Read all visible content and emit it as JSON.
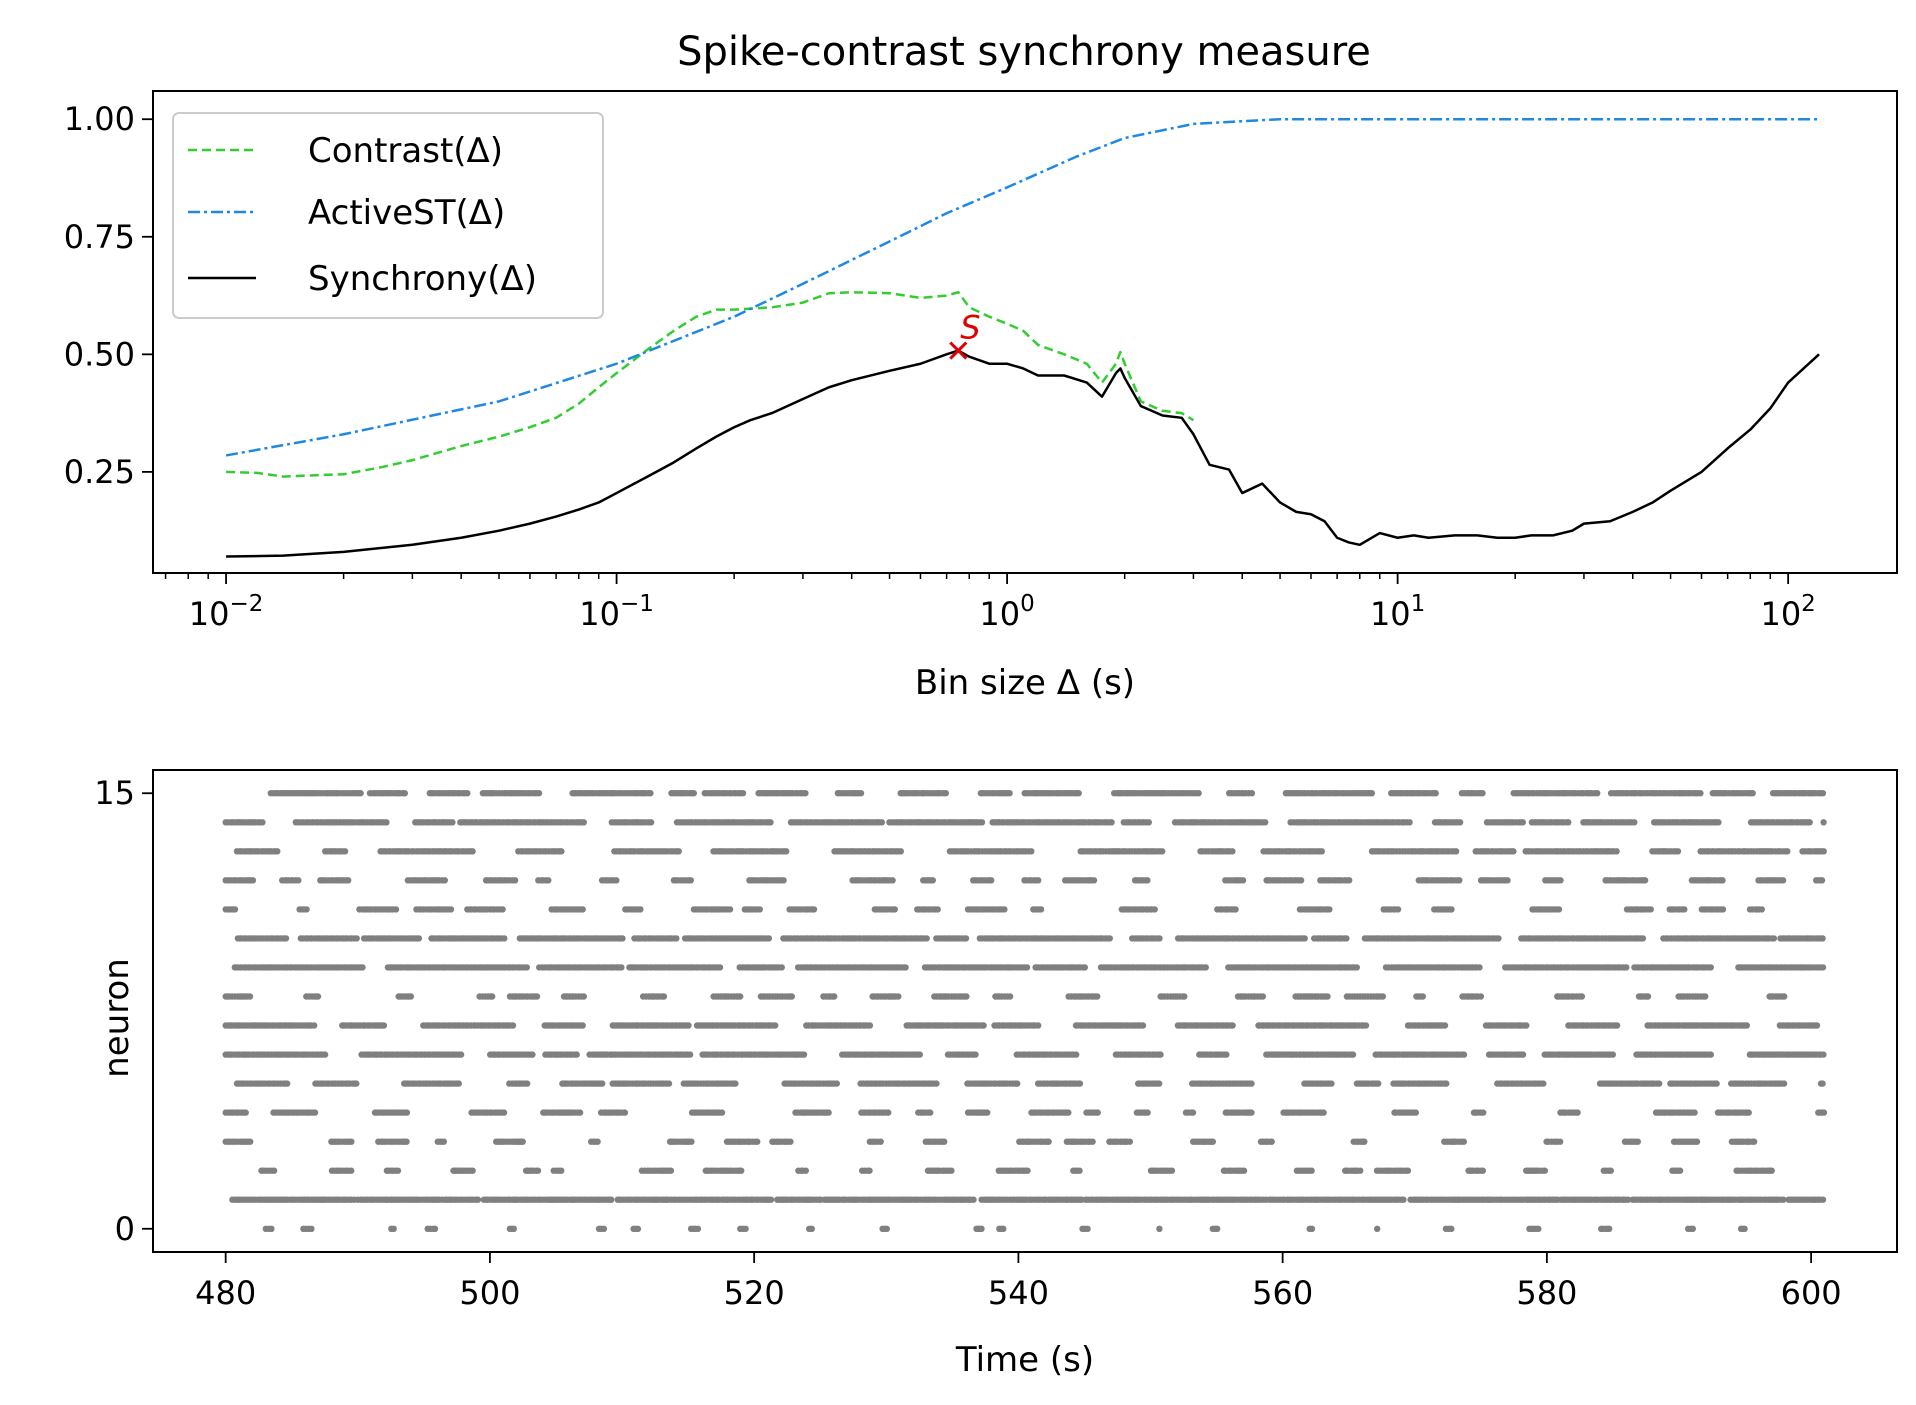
{
  "chart_data": [
    {
      "type": "line",
      "title": "Spike-contrast synchrony measure",
      "xlabel": "Bin size Δ (s)",
      "ylabel": "",
      "xscale": "log",
      "xlim": [
        0.0065,
        190
      ],
      "ylim": [
        0.035,
        1.06
      ],
      "x_ticks": [
        {
          "value": 0.01,
          "base": "10",
          "exp": "−2"
        },
        {
          "value": 0.1,
          "base": "10",
          "exp": "−1"
        },
        {
          "value": 1,
          "base": "10",
          "exp": "0"
        },
        {
          "value": 10,
          "base": "10",
          "exp": "1"
        },
        {
          "value": 100,
          "base": "10",
          "exp": "2"
        }
      ],
      "y_ticks": [
        {
          "value": 0.25,
          "label": "0.25"
        },
        {
          "value": 0.5,
          "label": "0.50"
        },
        {
          "value": 0.75,
          "label": "0.75"
        },
        {
          "value": 1.0,
          "label": "1.00"
        }
      ],
      "legend_position": "top-left",
      "series": [
        {
          "name": "Contrast(Δ)",
          "color": "#33cc33",
          "style": "dashed",
          "x": [
            0.01,
            0.012,
            0.014,
            0.017,
            0.02,
            0.025,
            0.03,
            0.04,
            0.05,
            0.06,
            0.07,
            0.08,
            0.09,
            0.1,
            0.12,
            0.14,
            0.16,
            0.18,
            0.2,
            0.25,
            0.3,
            0.35,
            0.4,
            0.5,
            0.6,
            0.7,
            0.75,
            0.8,
            0.9,
            1.0,
            1.1,
            1.2,
            1.4,
            1.6,
            1.75,
            1.9,
            1.95,
            2.0,
            2.2,
            2.5,
            2.8,
            3.0
          ],
          "y": [
            0.25,
            0.248,
            0.24,
            0.243,
            0.245,
            0.26,
            0.275,
            0.305,
            0.325,
            0.345,
            0.365,
            0.395,
            0.43,
            0.46,
            0.51,
            0.55,
            0.58,
            0.595,
            0.595,
            0.6,
            0.61,
            0.63,
            0.632,
            0.63,
            0.62,
            0.625,
            0.632,
            0.6,
            0.58,
            0.565,
            0.55,
            0.52,
            0.5,
            0.48,
            0.44,
            0.48,
            0.505,
            0.48,
            0.4,
            0.38,
            0.375,
            0.36
          ]
        },
        {
          "name": "ActiveST(Δ)",
          "color": "#1e88e5",
          "style": "dashdot",
          "x": [
            0.01,
            0.02,
            0.05,
            0.1,
            0.2,
            0.3,
            0.5,
            0.7,
            1.0,
            1.5,
            2.0,
            3.0,
            5.0,
            10,
            20,
            50,
            100,
            120
          ],
          "y": [
            0.285,
            0.33,
            0.4,
            0.48,
            0.58,
            0.65,
            0.74,
            0.8,
            0.855,
            0.92,
            0.96,
            0.99,
            1.0,
            1.0,
            1.0,
            1.0,
            1.0,
            1.0
          ]
        },
        {
          "name": "Synchrony(Δ)",
          "color": "#000000",
          "style": "solid",
          "x": [
            0.01,
            0.014,
            0.02,
            0.03,
            0.04,
            0.05,
            0.06,
            0.07,
            0.08,
            0.09,
            0.1,
            0.12,
            0.14,
            0.16,
            0.18,
            0.2,
            0.22,
            0.25,
            0.3,
            0.35,
            0.4,
            0.5,
            0.6,
            0.7,
            0.75,
            0.8,
            0.9,
            1.0,
            1.1,
            1.2,
            1.4,
            1.6,
            1.75,
            1.9,
            1.95,
            2.0,
            2.2,
            2.5,
            2.8,
            3.0,
            3.3,
            3.7,
            4.0,
            4.5,
            5.0,
            5.5,
            6.0,
            6.5,
            7.0,
            7.5,
            8.0,
            9.0,
            10,
            11,
            12,
            14,
            16,
            18,
            20,
            22,
            25,
            28,
            30,
            35,
            40,
            45,
            50,
            60,
            70,
            80,
            90,
            100,
            120
          ],
          "y": [
            0.07,
            0.072,
            0.08,
            0.095,
            0.11,
            0.125,
            0.14,
            0.155,
            0.17,
            0.185,
            0.205,
            0.24,
            0.27,
            0.3,
            0.325,
            0.345,
            0.36,
            0.375,
            0.405,
            0.43,
            0.445,
            0.465,
            0.48,
            0.5,
            0.508,
            0.495,
            0.48,
            0.48,
            0.47,
            0.455,
            0.455,
            0.44,
            0.41,
            0.46,
            0.47,
            0.45,
            0.39,
            0.37,
            0.365,
            0.33,
            0.265,
            0.255,
            0.205,
            0.225,
            0.185,
            0.165,
            0.16,
            0.145,
            0.11,
            0.1,
            0.095,
            0.12,
            0.11,
            0.115,
            0.11,
            0.115,
            0.115,
            0.11,
            0.11,
            0.115,
            0.115,
            0.125,
            0.14,
            0.145,
            0.165,
            0.185,
            0.21,
            0.25,
            0.3,
            0.34,
            0.385,
            0.44,
            0.5
          ]
        }
      ],
      "annotation": {
        "text": "S",
        "x": 0.75,
        "y": 0.508,
        "color": "#e00000",
        "marker": "x"
      }
    },
    {
      "type": "scatter",
      "xlabel": "Time (s)",
      "ylabel": "neuron",
      "xlim": [
        474.5,
        606.5
      ],
      "ylim": [
        -0.8,
        15.8
      ],
      "x_ticks": [
        {
          "value": 480,
          "label": "480"
        },
        {
          "value": 500,
          "label": "500"
        },
        {
          "value": 520,
          "label": "520"
        },
        {
          "value": 540,
          "label": "540"
        },
        {
          "value": 560,
          "label": "560"
        },
        {
          "value": 580,
          "label": "580"
        },
        {
          "value": 600,
          "label": "600"
        }
      ],
      "y_ticks": [
        {
          "value": 0,
          "label": "0"
        },
        {
          "value": 15,
          "label": "15"
        }
      ],
      "marker_color": "#808080",
      "time_range": [
        480,
        601
      ],
      "neurons": [
        {
          "id": 0,
          "density": 0.03
        },
        {
          "id": 1,
          "density": 1.0
        },
        {
          "id": 2,
          "density": 0.18
        },
        {
          "id": 3,
          "density": 0.15
        },
        {
          "id": 4,
          "density": 0.2
        },
        {
          "id": 5,
          "density": 0.45
        },
        {
          "id": 6,
          "density": 0.55
        },
        {
          "id": 7,
          "density": 0.6
        },
        {
          "id": 8,
          "density": 0.18
        },
        {
          "id": 9,
          "density": 0.75
        },
        {
          "id": 10,
          "density": 0.82
        },
        {
          "id": 11,
          "density": 0.18
        },
        {
          "id": 12,
          "density": 0.2
        },
        {
          "id": 13,
          "density": 0.5
        },
        {
          "id": 14,
          "density": 0.7
        },
        {
          "id": 15,
          "density": 0.55
        }
      ]
    }
  ]
}
